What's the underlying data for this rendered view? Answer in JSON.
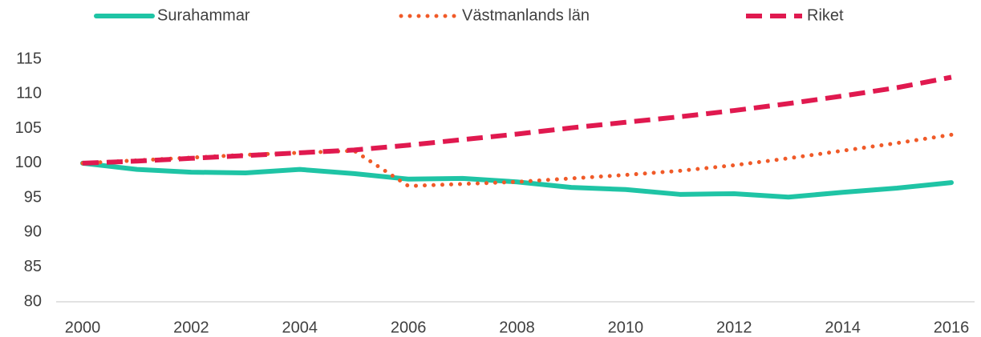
{
  "chart_data": {
    "type": "line",
    "x": [
      2000,
      2001,
      2002,
      2003,
      2004,
      2005,
      2006,
      2007,
      2008,
      2009,
      2010,
      2011,
      2012,
      2013,
      2014,
      2015,
      2016
    ],
    "series": [
      {
        "name": "Surahammar",
        "color": "#1fc4a5",
        "style": "solid",
        "values": [
          100,
          99.1,
          98.7,
          98.6,
          99.1,
          98.5,
          97.7,
          97.8,
          97.3,
          96.5,
          96.2,
          95.5,
          95.6,
          95.1,
          95.8,
          96.4,
          97.2
        ]
      },
      {
        "name": "Västmanlands län",
        "color": "#f05a28",
        "style": "dotted",
        "values": [
          100,
          100.4,
          100.8,
          101.2,
          101.5,
          101.8,
          96.7,
          97.0,
          97.3,
          97.8,
          98.3,
          98.9,
          99.7,
          100.7,
          101.8,
          102.9,
          104.1
        ]
      },
      {
        "name": "Riket",
        "color": "#e0194f",
        "style": "dashed",
        "values": [
          100,
          100.3,
          100.7,
          101.1,
          101.5,
          101.9,
          102.6,
          103.4,
          104.2,
          105.1,
          105.9,
          106.7,
          107.6,
          108.6,
          109.7,
          110.9,
          112.4
        ]
      }
    ],
    "xlim": [
      2000,
      2016
    ],
    "xticks": [
      2000,
      2002,
      2004,
      2006,
      2008,
      2010,
      2012,
      2014,
      2016
    ],
    "ylim": [
      80,
      115
    ],
    "yticks": [
      80,
      85,
      90,
      95,
      100,
      105,
      110,
      115
    ],
    "grid": false,
    "legend": "top"
  }
}
